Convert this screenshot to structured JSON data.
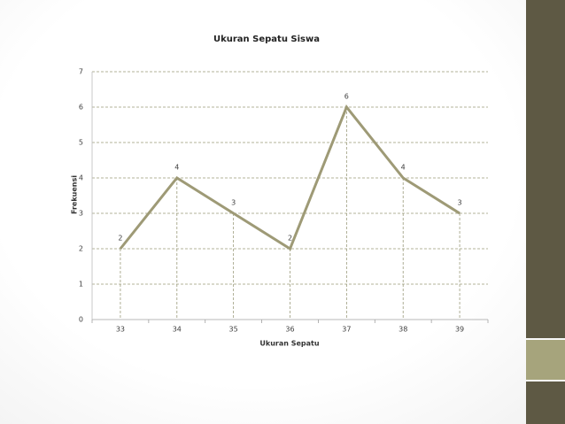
{
  "chart_data": {
    "type": "line",
    "title": "Ukuran Sepatu Siswa",
    "x_label": "Ukuran Sepatu",
    "y_label": "Frekuensi",
    "categories": [
      "33",
      "34",
      "35",
      "36",
      "37",
      "38",
      "39"
    ],
    "series": [
      {
        "name": "Frekuensi",
        "color": "#9e9a76",
        "values": [
          2,
          4,
          3,
          2,
          6,
          4,
          3
        ]
      }
    ],
    "ylim": [
      0,
      7
    ],
    "yticks": [
      0,
      1,
      2,
      3,
      4,
      5,
      6,
      7
    ],
    "grid": true,
    "data_labels": true
  }
}
